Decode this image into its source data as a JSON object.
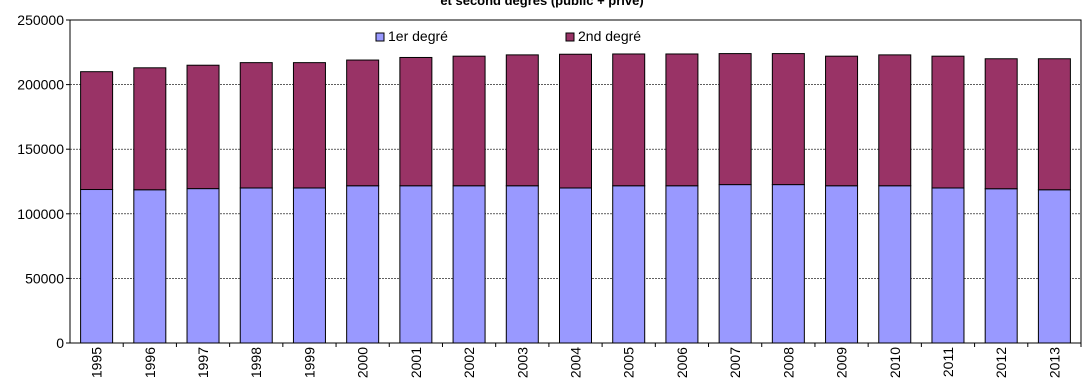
{
  "chart_data": {
    "type": "bar",
    "stacked": true,
    "title": "et second degrés (public + privé)",
    "categories": [
      "1995",
      "1996",
      "1997",
      "1998",
      "1999",
      "2000",
      "2001",
      "2002",
      "2003",
      "2004",
      "2005",
      "2006",
      "2007",
      "2008",
      "2009",
      "2010",
      "2011",
      "2012",
      "2013"
    ],
    "series": [
      {
        "name": "1er degré",
        "color": "#9999ff",
        "values": [
          118800,
          118600,
          119500,
          120000,
          120000,
          121700,
          121700,
          121700,
          121700,
          120000,
          121700,
          121700,
          122600,
          122600,
          121700,
          121700,
          120000,
          119400,
          118600
        ]
      },
      {
        "name": "2nd degré",
        "color": "#993366",
        "values": [
          91200,
          94400,
          95500,
          97000,
          97000,
          97300,
          99300,
          100300,
          101300,
          103500,
          102000,
          102000,
          101400,
          101400,
          100300,
          101300,
          102000,
          100600,
          101400
        ]
      }
    ],
    "yticks": [
      "0",
      "50000",
      "100000",
      "150000",
      "200000",
      "250000"
    ],
    "ylim": [
      0,
      250000
    ],
    "grid": true,
    "legend_position": "top",
    "xlabel": "",
    "ylabel": ""
  }
}
